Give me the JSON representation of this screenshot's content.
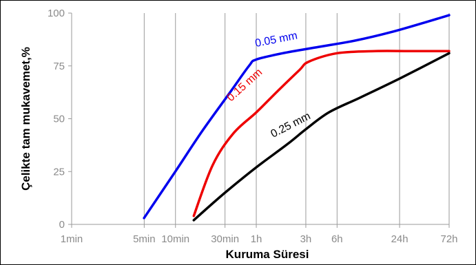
{
  "chart_data": {
    "type": "line",
    "xlabel": "Kuruma Süresi",
    "ylabel": "Çelikte tam mukavemet,%",
    "x_scale": "log",
    "x_unit": "hours",
    "x_ticks": [
      {
        "value": 0.016667,
        "label": "1min"
      },
      {
        "value": 0.083333,
        "label": "5min"
      },
      {
        "value": 0.166667,
        "label": "10min"
      },
      {
        "value": 0.5,
        "label": "30min"
      },
      {
        "value": 1,
        "label": "1h"
      },
      {
        "value": 3,
        "label": "3h"
      },
      {
        "value": 6,
        "label": "6h"
      },
      {
        "value": 24,
        "label": "24h"
      },
      {
        "value": 72,
        "label": "72h"
      }
    ],
    "xlim": [
      0.016667,
      72
    ],
    "ylim": [
      0,
      100
    ],
    "y_ticks": [
      0,
      25,
      50,
      75,
      100
    ],
    "grid": "vertical",
    "series": [
      {
        "name": "0.05 mm",
        "color": "#0000ee",
        "points": [
          [
            0.083,
            3
          ],
          [
            0.166,
            25
          ],
          [
            0.3,
            44
          ],
          [
            0.55,
            62
          ],
          [
            0.85,
            75
          ],
          [
            1,
            78
          ],
          [
            1.8,
            81
          ],
          [
            4,
            84
          ],
          [
            9,
            87
          ],
          [
            20,
            91
          ],
          [
            45,
            96
          ],
          [
            72,
            99
          ]
        ]
      },
      {
        "name": "0.15 mm",
        "color": "#ee0000",
        "points": [
          [
            0.25,
            4
          ],
          [
            0.38,
            28
          ],
          [
            0.6,
            43
          ],
          [
            1,
            53
          ],
          [
            1.6,
            63
          ],
          [
            2.6,
            73
          ],
          [
            3.2,
            77
          ],
          [
            6,
            81
          ],
          [
            14,
            82
          ],
          [
            30,
            82
          ],
          [
            72,
            82
          ]
        ]
      },
      {
        "name": "0.25 mm",
        "color": "#000000",
        "points": [
          [
            0.25,
            2
          ],
          [
            0.5,
            15
          ],
          [
            1,
            27
          ],
          [
            2,
            38
          ],
          [
            3,
            45
          ],
          [
            5,
            53
          ],
          [
            10,
            60
          ],
          [
            24,
            69
          ],
          [
            72,
            81
          ]
        ]
      }
    ]
  }
}
